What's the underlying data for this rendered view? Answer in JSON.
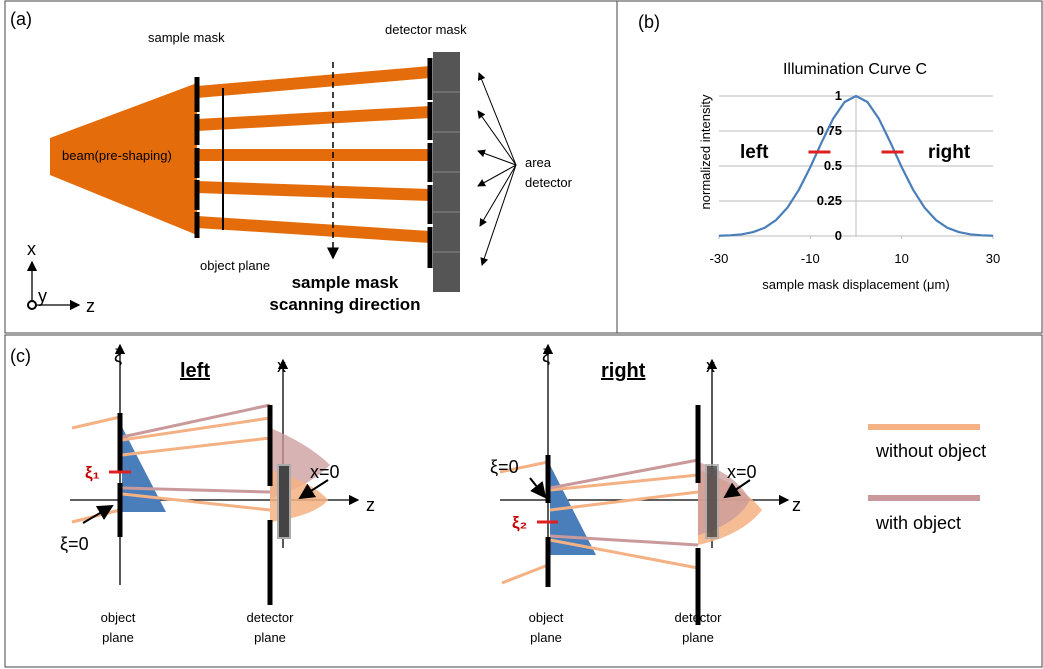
{
  "panel_a": {
    "label": "(a)",
    "sample_mask": "sample mask",
    "detector_mask": "detector mask",
    "beam": "beam(pre-shaping)",
    "object_plane": "object plane",
    "area_detector": [
      "area",
      "detector"
    ],
    "scanning_direction": [
      "sample mask",
      "scanning direction"
    ],
    "axes": [
      "x",
      "y",
      "z"
    ]
  },
  "chart_data": {
    "type": "line",
    "panel_label": "(b)",
    "title": "Illumination Curve C",
    "x_label": "sample mask displacement (μm)",
    "y_label": "normalized intensity",
    "x": [
      -30,
      -27.5,
      -25,
      -22.5,
      -20,
      -17.5,
      -15,
      -12.5,
      -10,
      -7.5,
      -5,
      -2.5,
      0,
      2.5,
      5,
      7.5,
      10,
      12.5,
      15,
      17.5,
      20,
      22.5,
      25,
      27.5,
      30
    ],
    "series": [
      {
        "color": "#4a7ebb",
        "values": [
          0.002,
          0.005,
          0.012,
          0.028,
          0.059,
          0.114,
          0.203,
          0.331,
          0.492,
          0.671,
          0.838,
          0.957,
          1,
          0.957,
          0.838,
          0.671,
          0.492,
          0.331,
          0.203,
          0.114,
          0.059,
          0.028,
          0.012,
          0.005,
          0.002
        ]
      }
    ],
    "xlim": [
      -30,
      30
    ],
    "ylim": [
      0,
      1
    ],
    "xticks": [
      -30,
      -10,
      10,
      30
    ],
    "yticks": [
      0,
      0.25,
      0.5,
      0.75,
      1
    ],
    "grid": true,
    "annotations": [
      "left",
      "right"
    ],
    "marker_x": [
      -8,
      8
    ],
    "marker_y": [
      0.6,
      0.6
    ],
    "marker_color": "#e02020"
  },
  "panel_c": {
    "label": "(c)",
    "left": {
      "title": "left",
      "xi_axis": "ξ",
      "xi_label": "ξ₁",
      "xi_zero": "ξ=0",
      "x_axis": "x",
      "x_zero": "x=0",
      "z_axis": "z",
      "object_plane": [
        "object",
        "plane"
      ],
      "detector_plane": [
        "detector",
        "plane"
      ]
    },
    "right": {
      "title": "right",
      "xi_axis": "ξ",
      "xi_label": "ξ₂",
      "xi_zero": "ξ=0",
      "x_axis": "x",
      "x_zero": "x=0",
      "z_axis": "z",
      "object_plane": [
        "object",
        "plane"
      ],
      "detector_plane": [
        "detector",
        "plane"
      ]
    },
    "legend": [
      "without object",
      "with object"
    ]
  }
}
